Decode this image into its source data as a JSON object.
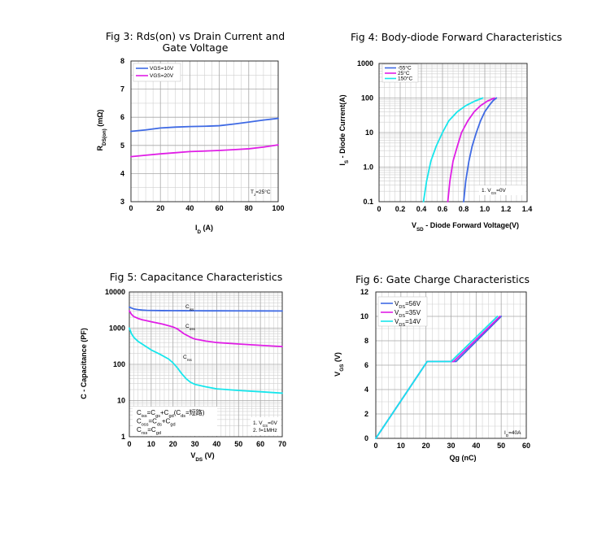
{
  "chart_data": [
    {
      "id": "fig3",
      "type": "line",
      "title_line1": "Fig 3: Rds(on) vs Drain Current and",
      "title_line2": "Gate Voltage",
      "xlabel": "I",
      "xlabel_sub": "D",
      "xlabel_unit": " (A)",
      "ylabel": "R",
      "ylabel_sub": "DS(on)",
      "ylabel_unit": " (mΩ)",
      "xlim": [
        0,
        100
      ],
      "ylim": [
        3,
        8
      ],
      "xticks": [
        0,
        20,
        40,
        60,
        80,
        100
      ],
      "yticks": [
        3,
        4,
        5,
        6,
        7,
        8
      ],
      "annotation": "T",
      "annotation_sub": "J",
      "annotation_rest": "=25°C",
      "legend_position": "top-left",
      "series": [
        {
          "name": "VGS=10V",
          "color": "#3f6ae4",
          "x": [
            0,
            10,
            20,
            30,
            40,
            50,
            60,
            70,
            80,
            90,
            100
          ],
          "y": [
            5.5,
            5.55,
            5.62,
            5.65,
            5.67,
            5.68,
            5.7,
            5.76,
            5.83,
            5.9,
            5.96
          ]
        },
        {
          "name": "VGS=20V",
          "color": "#e01ee6",
          "x": [
            0,
            10,
            20,
            30,
            40,
            50,
            60,
            70,
            80,
            90,
            100
          ],
          "y": [
            4.6,
            4.65,
            4.7,
            4.74,
            4.78,
            4.8,
            4.82,
            4.85,
            4.88,
            4.94,
            5.02
          ]
        }
      ]
    },
    {
      "id": "fig4",
      "type": "line",
      "title": "Fig 4: Body-diode Forward  Characteristics",
      "xlabel": "V",
      "xlabel_sub": "SD",
      "xlabel_unit": " - Diode Forward Voltage(V)",
      "ylabel": "I",
      "ylabel_sub": "S",
      "ylabel_unit": " - Diode Current(A)",
      "xlim": [
        0,
        1.4
      ],
      "ylim": [
        0.1,
        1000
      ],
      "yscale": "log",
      "xticks": [
        "0",
        "0.2",
        "0.4",
        "0.6",
        "0.8",
        "1.0",
        "1.2",
        "1.4"
      ],
      "yticks": [
        "0.1",
        "1.0",
        "10",
        "100",
        "1000"
      ],
      "annotation": "1. V",
      "annotation_sub": "GS",
      "annotation_rest": "=0V",
      "legend_position": "top-left",
      "series": [
        {
          "name": "-55°C",
          "color": "#3f6ae4",
          "x": [
            0.8,
            0.82,
            0.85,
            0.88,
            0.92,
            0.96,
            1.0,
            1.04,
            1.08,
            1.11
          ],
          "y": [
            0.1,
            0.4,
            1.5,
            4,
            10,
            22,
            40,
            60,
            85,
            100
          ]
        },
        {
          "name": "25°C",
          "color": "#e01ee6",
          "x": [
            0.65,
            0.67,
            0.7,
            0.74,
            0.78,
            0.84,
            0.9,
            0.96,
            1.02,
            1.09
          ],
          "y": [
            0.1,
            0.4,
            1.5,
            4,
            10,
            22,
            40,
            60,
            80,
            100
          ]
        },
        {
          "name": "150°C",
          "color": "#17e6ec",
          "x": [
            0.42,
            0.45,
            0.49,
            0.54,
            0.6,
            0.66,
            0.74,
            0.82,
            0.9,
            0.98
          ],
          "y": [
            0.1,
            0.4,
            1.5,
            4,
            10,
            22,
            40,
            60,
            80,
            100
          ]
        }
      ]
    },
    {
      "id": "fig5",
      "type": "line",
      "title": "Fig 5:  Capacitance Characteristics",
      "xlabel": "V",
      "xlabel_sub": "DS",
      "xlabel_unit": " (V)",
      "ylabel": "C - Capacitance (PF)",
      "xlim": [
        0,
        70
      ],
      "ylim": [
        1,
        10000
      ],
      "yscale": "log",
      "xticks": [
        0,
        10,
        20,
        30,
        40,
        50,
        60,
        70
      ],
      "yticks": [
        "1",
        "10",
        "100",
        "1000",
        "10000"
      ],
      "conditions": [
        "1. V",
        "GS",
        "=0V",
        "2. f=1MHz"
      ],
      "formula_lines": [
        [
          "C",
          "iss",
          "=C",
          "gs",
          "+C",
          "gd",
          "(C",
          "ds",
          "=短路)"
        ],
        [
          "C",
          "oss",
          "=C",
          "ds",
          "+C",
          "gd",
          "",
          "",
          ""
        ],
        [
          "C",
          "rss",
          "=C",
          "gd",
          "",
          "",
          "",
          "",
          ""
        ]
      ],
      "series": [
        {
          "name": "C",
          "name_sub": "iss",
          "color": "#3f6ae4",
          "x": [
            0,
            2,
            4,
            6,
            8,
            10,
            15,
            20,
            25,
            30,
            40,
            50,
            60,
            70
          ],
          "y": [
            3800,
            3400,
            3250,
            3150,
            3100,
            3080,
            3050,
            3040,
            3030,
            3020,
            3010,
            3000,
            2990,
            2980
          ]
        },
        {
          "name": "C",
          "name_sub": "oss",
          "color": "#e01ee6",
          "x": [
            0,
            1,
            2,
            4,
            6,
            8,
            10,
            15,
            20,
            22,
            25,
            28,
            30,
            35,
            40,
            50,
            60,
            70
          ],
          "y": [
            3000,
            2400,
            2100,
            1850,
            1700,
            1600,
            1500,
            1300,
            1080,
            950,
            700,
            560,
            500,
            440,
            400,
            365,
            335,
            310
          ]
        },
        {
          "name": "C",
          "name_sub": "rss",
          "color": "#17e6ec",
          "x": [
            0,
            1,
            2,
            4,
            6,
            8,
            10,
            14,
            18,
            20,
            22,
            24,
            26,
            28,
            30,
            35,
            40,
            50,
            60,
            70
          ],
          "y": [
            1000,
            700,
            560,
            430,
            360,
            300,
            250,
            190,
            140,
            110,
            80,
            55,
            40,
            32,
            28,
            24,
            21,
            19,
            17.5,
            16
          ]
        }
      ]
    },
    {
      "id": "fig6",
      "type": "line",
      "title": "Fig 6:  Gate Charge Characteristics",
      "xlabel": "Qg (nC)",
      "ylabel": "V",
      "ylabel_sub": "GS",
      "ylabel_unit": " (V)",
      "xlim": [
        0,
        60
      ],
      "ylim": [
        0,
        12
      ],
      "xticks": [
        0,
        10,
        20,
        30,
        40,
        50,
        60
      ],
      "yticks": [
        0,
        2,
        4,
        6,
        8,
        10,
        12
      ],
      "annotation": "I",
      "annotation_sub": "D",
      "annotation_rest": "=40A",
      "legend_position": "top-left",
      "series": [
        {
          "name": "V",
          "name_sub": "DS",
          "name_rest": "=56V",
          "color": "#3f6ae4",
          "x": [
            0,
            20.5,
            32,
            50
          ],
          "y": [
            0,
            6.3,
            6.3,
            10
          ]
        },
        {
          "name": "V",
          "name_sub": "DS",
          "name_rest": "=35V",
          "color": "#e01ee6",
          "x": [
            0,
            20.5,
            31,
            49.5
          ],
          "y": [
            0,
            6.3,
            6.3,
            10
          ]
        },
        {
          "name": "V",
          "name_sub": "DS",
          "name_rest": "=14V",
          "color": "#17e6ec",
          "x": [
            0,
            20.5,
            30,
            48.5
          ],
          "y": [
            0,
            6.3,
            6.3,
            10
          ]
        }
      ]
    }
  ]
}
